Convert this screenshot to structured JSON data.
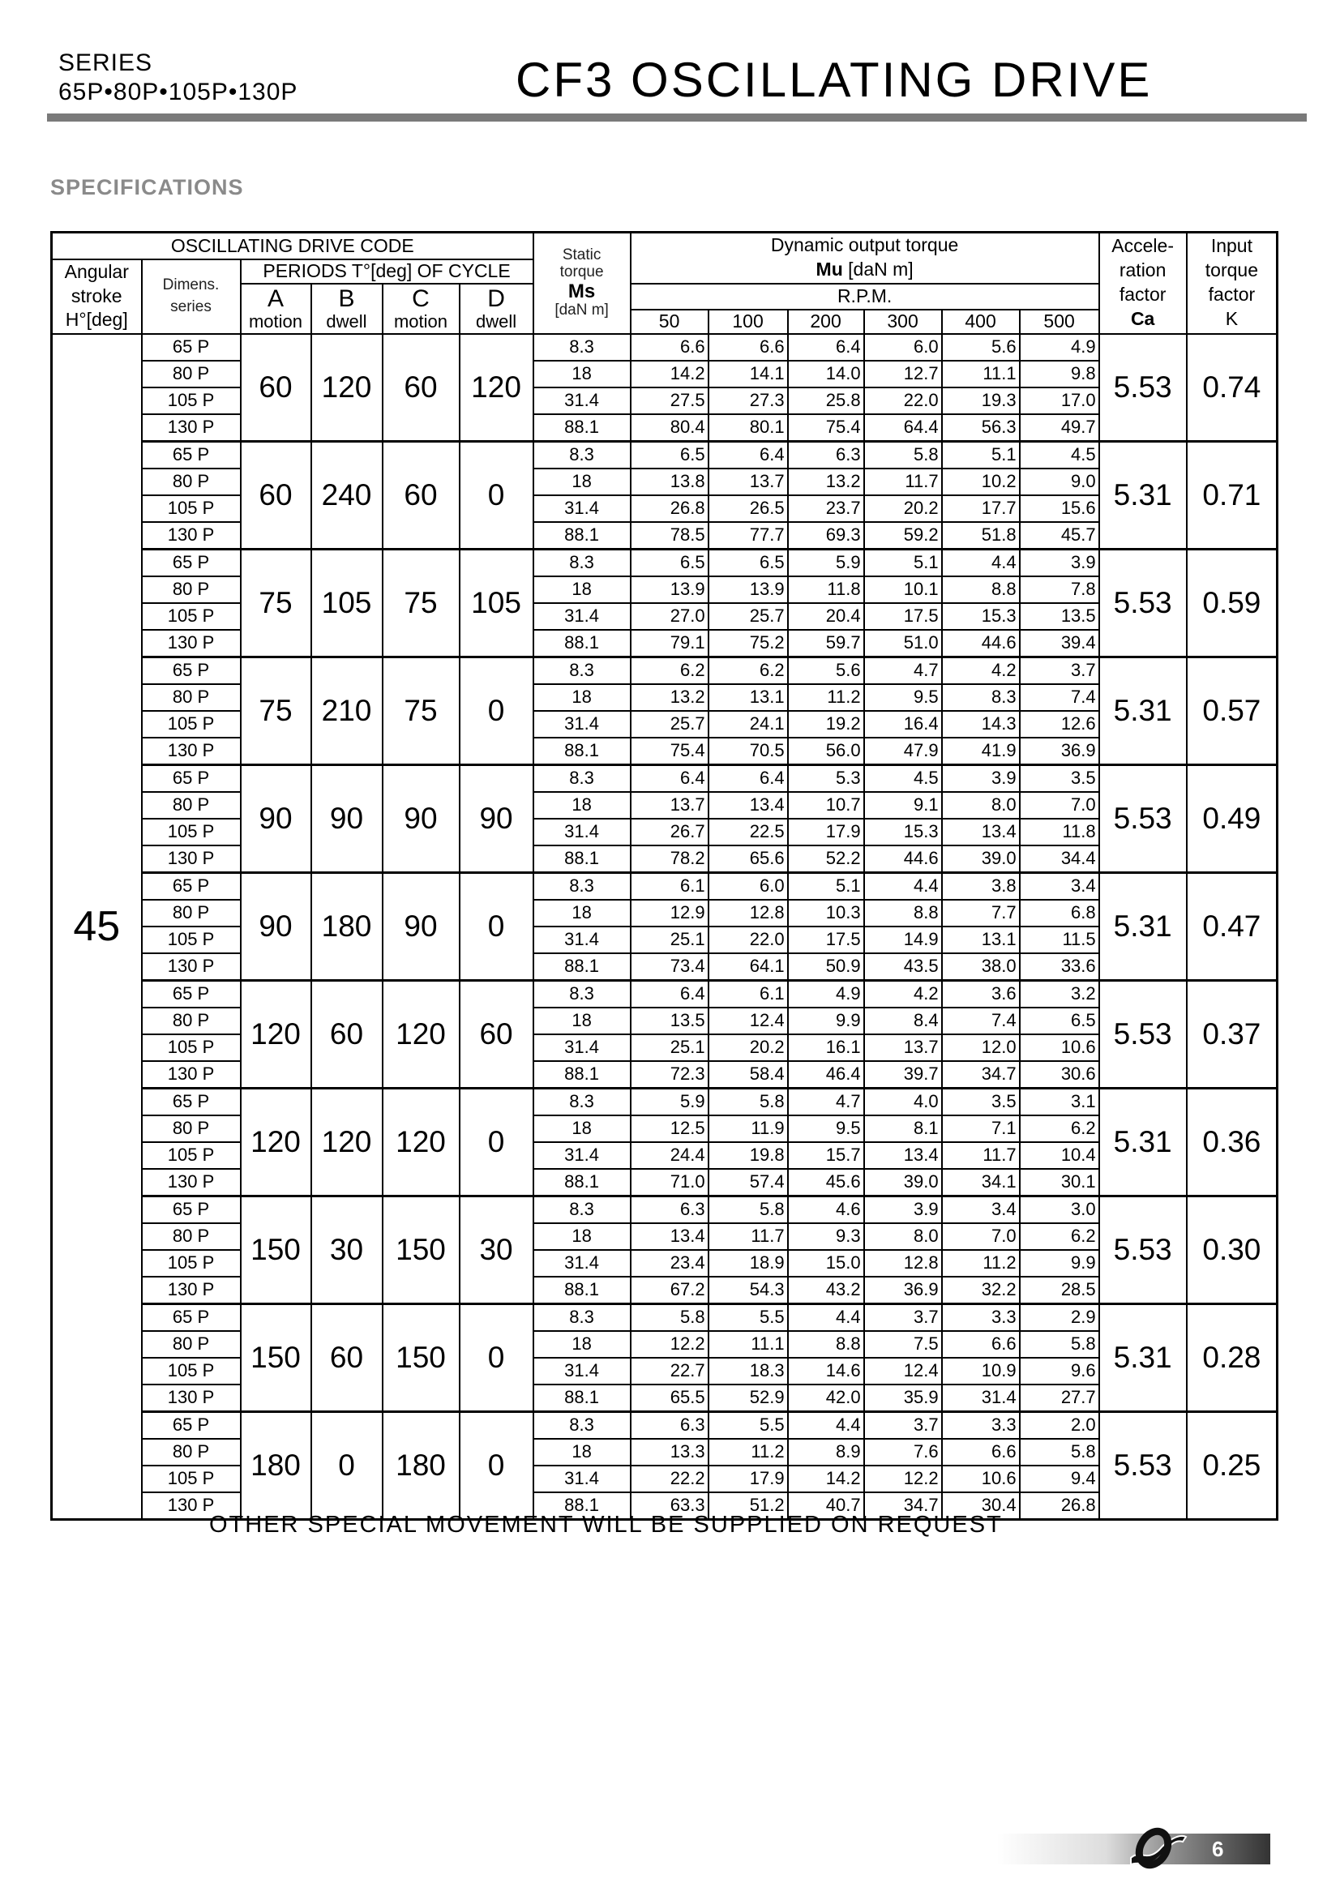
{
  "header": {
    "series_label": "SERIES",
    "series_models": "65P•80P•105P•130P",
    "title": "CF3 OSCILLATING DRIVE"
  },
  "section_title": "SPECIFICATIONS",
  "table": {
    "headers": {
      "drive_code": "OSCILLATING DRIVE CODE",
      "angular_stroke": [
        "Angular",
        "stroke",
        "H°[deg]"
      ],
      "dimens_series": [
        "Dimens.",
        "series"
      ],
      "periods": "PERIODS T°[deg] OF CYCLE",
      "period_cols": [
        {
          "letter": "A",
          "sub": "motion"
        },
        {
          "letter": "B",
          "sub": "dwell"
        },
        {
          "letter": "C",
          "sub": "motion"
        },
        {
          "letter": "D",
          "sub": "dwell"
        }
      ],
      "static_torque": [
        "Static",
        "torque",
        "Ms",
        "[daN m]"
      ],
      "dynamic_title": "Dynamic output torque",
      "dynamic_unit_bold": "Mu",
      "dynamic_unit": "[daN m]",
      "rpm": "R.P.M.",
      "rpm_values": [
        "50",
        "100",
        "200",
        "300",
        "400",
        "500"
      ],
      "accel": [
        "Accele-",
        "ration",
        "factor",
        "Ca"
      ],
      "input": [
        "Input",
        "torque",
        "factor",
        "K"
      ]
    },
    "angular_stroke_value": "45",
    "dimens": [
      "65 P",
      "80 P",
      "105 P",
      "130 P"
    ],
    "static": [
      "8.3",
      "18",
      "31.4",
      "88.1"
    ],
    "groups": [
      {
        "periods": [
          "60",
          "120",
          "60",
          "120"
        ],
        "ca": "5.53",
        "k": "0.74",
        "torque": [
          [
            "6.6",
            "6.6",
            "6.4",
            "6.0",
            "5.6",
            "4.9"
          ],
          [
            "14.2",
            "14.1",
            "14.0",
            "12.7",
            "11.1",
            "9.8"
          ],
          [
            "27.5",
            "27.3",
            "25.8",
            "22.0",
            "19.3",
            "17.0"
          ],
          [
            "80.4",
            "80.1",
            "75.4",
            "64.4",
            "56.3",
            "49.7"
          ]
        ]
      },
      {
        "periods": [
          "60",
          "240",
          "60",
          "0"
        ],
        "ca": "5.31",
        "k": "0.71",
        "torque": [
          [
            "6.5",
            "6.4",
            "6.3",
            "5.8",
            "5.1",
            "4.5"
          ],
          [
            "13.8",
            "13.7",
            "13.2",
            "11.7",
            "10.2",
            "9.0"
          ],
          [
            "26.8",
            "26.5",
            "23.7",
            "20.2",
            "17.7",
            "15.6"
          ],
          [
            "78.5",
            "77.7",
            "69.3",
            "59.2",
            "51.8",
            "45.7"
          ]
        ]
      },
      {
        "periods": [
          "75",
          "105",
          "75",
          "105"
        ],
        "ca": "5.53",
        "k": "0.59",
        "torque": [
          [
            "6.5",
            "6.5",
            "5.9",
            "5.1",
            "4.4",
            "3.9"
          ],
          [
            "13.9",
            "13.9",
            "11.8",
            "10.1",
            "8.8",
            "7.8"
          ],
          [
            "27.0",
            "25.7",
            "20.4",
            "17.5",
            "15.3",
            "13.5"
          ],
          [
            "79.1",
            "75.2",
            "59.7",
            "51.0",
            "44.6",
            "39.4"
          ]
        ]
      },
      {
        "periods": [
          "75",
          "210",
          "75",
          "0"
        ],
        "ca": "5.31",
        "k": "0.57",
        "torque": [
          [
            "6.2",
            "6.2",
            "5.6",
            "4.7",
            "4.2",
            "3.7"
          ],
          [
            "13.2",
            "13.1",
            "11.2",
            "9.5",
            "8.3",
            "7.4"
          ],
          [
            "25.7",
            "24.1",
            "19.2",
            "16.4",
            "14.3",
            "12.6"
          ],
          [
            "75.4",
            "70.5",
            "56.0",
            "47.9",
            "41.9",
            "36.9"
          ]
        ]
      },
      {
        "periods": [
          "90",
          "90",
          "90",
          "90"
        ],
        "ca": "5.53",
        "k": "0.49",
        "torque": [
          [
            "6.4",
            "6.4",
            "5.3",
            "4.5",
            "3.9",
            "3.5"
          ],
          [
            "13.7",
            "13.4",
            "10.7",
            "9.1",
            "8.0",
            "7.0"
          ],
          [
            "26.7",
            "22.5",
            "17.9",
            "15.3",
            "13.4",
            "11.8"
          ],
          [
            "78.2",
            "65.6",
            "52.2",
            "44.6",
            "39.0",
            "34.4"
          ]
        ]
      },
      {
        "periods": [
          "90",
          "180",
          "90",
          "0"
        ],
        "ca": "5.31",
        "k": "0.47",
        "torque": [
          [
            "6.1",
            "6.0",
            "5.1",
            "4.4",
            "3.8",
            "3.4"
          ],
          [
            "12.9",
            "12.8",
            "10.3",
            "8.8",
            "7.7",
            "6.8"
          ],
          [
            "25.1",
            "22.0",
            "17.5",
            "14.9",
            "13.1",
            "11.5"
          ],
          [
            "73.4",
            "64.1",
            "50.9",
            "43.5",
            "38.0",
            "33.6"
          ]
        ]
      },
      {
        "periods": [
          "120",
          "60",
          "120",
          "60"
        ],
        "ca": "5.53",
        "k": "0.37",
        "torque": [
          [
            "6.4",
            "6.1",
            "4.9",
            "4.2",
            "3.6",
            "3.2"
          ],
          [
            "13.5",
            "12.4",
            "9.9",
            "8.4",
            "7.4",
            "6.5"
          ],
          [
            "25.1",
            "20.2",
            "16.1",
            "13.7",
            "12.0",
            "10.6"
          ],
          [
            "72.3",
            "58.4",
            "46.4",
            "39.7",
            "34.7",
            "30.6"
          ]
        ]
      },
      {
        "periods": [
          "120",
          "120",
          "120",
          "0"
        ],
        "ca": "5.31",
        "k": "0.36",
        "torque": [
          [
            "5.9",
            "5.8",
            "4.7",
            "4.0",
            "3.5",
            "3.1"
          ],
          [
            "12.5",
            "11.9",
            "9.5",
            "8.1",
            "7.1",
            "6.2"
          ],
          [
            "24.4",
            "19.8",
            "15.7",
            "13.4",
            "11.7",
            "10.4"
          ],
          [
            "71.0",
            "57.4",
            "45.6",
            "39.0",
            "34.1",
            "30.1"
          ]
        ]
      },
      {
        "periods": [
          "150",
          "30",
          "150",
          "30"
        ],
        "ca": "5.53",
        "k": "0.30",
        "torque": [
          [
            "6.3",
            "5.8",
            "4.6",
            "3.9",
            "3.4",
            "3.0"
          ],
          [
            "13.4",
            "11.7",
            "9.3",
            "8.0",
            "7.0",
            "6.2"
          ],
          [
            "23.4",
            "18.9",
            "15.0",
            "12.8",
            "11.2",
            "9.9"
          ],
          [
            "67.2",
            "54.3",
            "43.2",
            "36.9",
            "32.2",
            "28.5"
          ]
        ]
      },
      {
        "periods": [
          "150",
          "60",
          "150",
          "0"
        ],
        "ca": "5.31",
        "k": "0.28",
        "torque": [
          [
            "5.8",
            "5.5",
            "4.4",
            "3.7",
            "3.3",
            "2.9"
          ],
          [
            "12.2",
            "11.1",
            "8.8",
            "7.5",
            "6.6",
            "5.8"
          ],
          [
            "22.7",
            "18.3",
            "14.6",
            "12.4",
            "10.9",
            "9.6"
          ],
          [
            "65.5",
            "52.9",
            "42.0",
            "35.9",
            "31.4",
            "27.7"
          ]
        ]
      },
      {
        "periods": [
          "180",
          "0",
          "180",
          "0"
        ],
        "ca": "5.53",
        "k": "0.25",
        "torque": [
          [
            "6.3",
            "5.5",
            "4.4",
            "3.7",
            "3.3",
            "2.0"
          ],
          [
            "13.3",
            "11.2",
            "8.9",
            "7.6",
            "6.6",
            "5.8"
          ],
          [
            "22.2",
            "17.9",
            "14.2",
            "12.2",
            "10.6",
            "9.4"
          ],
          [
            "63.3",
            "51.2",
            "40.7",
            "34.7",
            "30.4",
            "26.8"
          ]
        ]
      }
    ]
  },
  "footer_note": "OTHER SPECIAL MOVEMENT WILL BE SUPPLIED ON REQUEST",
  "page_number": "6",
  "colors": {
    "rule": "#7a7a7a",
    "section_title": "#8a8a8a"
  }
}
